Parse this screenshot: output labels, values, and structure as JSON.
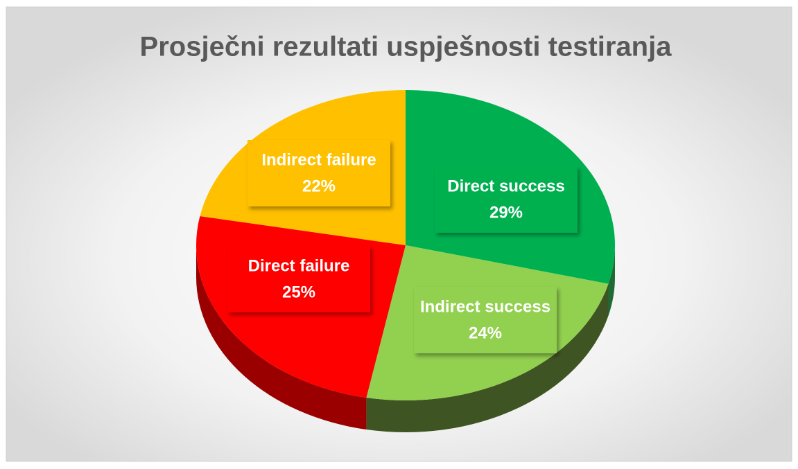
{
  "chart_data": {
    "type": "pie",
    "title": "Prosječni rezultati uspješnosti testiranja",
    "categories": [
      "Direct success",
      "Indirect success",
      "Direct failure",
      "Indirect failure"
    ],
    "values": [
      29,
      24,
      25,
      22
    ],
    "value_labels": [
      "29%",
      "24%",
      "25%",
      "22%"
    ],
    "colors": [
      "#00b050",
      "#92d050",
      "#ff0000",
      "#ffc000"
    ],
    "side_colors": [
      "#1e6b35",
      "#3f5423",
      "#9a0000",
      "#a07800"
    ]
  }
}
